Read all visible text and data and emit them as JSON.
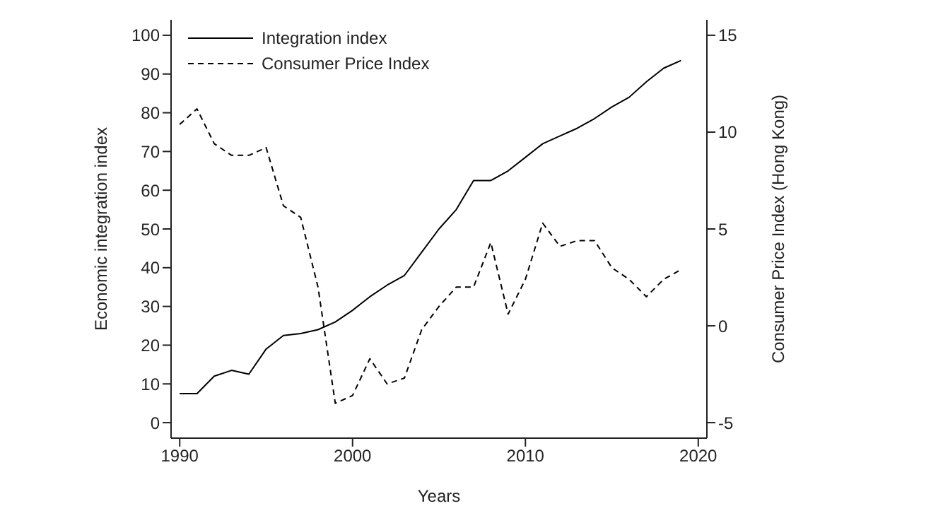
{
  "chart_data": {
    "type": "line",
    "xlabel": "Years",
    "ylabel": "Economic integration index",
    "y2label": "Consumer Price Index (Hong Kong)",
    "x": [
      1990,
      1991,
      1992,
      1993,
      1994,
      1995,
      1996,
      1997,
      1998,
      1999,
      2000,
      2001,
      2002,
      2003,
      2004,
      2005,
      2006,
      2007,
      2008,
      2009,
      2010,
      2011,
      2012,
      2013,
      2014,
      2015,
      2016,
      2017,
      2018,
      2019
    ],
    "series": [
      {
        "name": "Integration index",
        "color": "#000000",
        "line_style": "solid",
        "values": [
          7.5,
          7.5,
          12,
          13.5,
          12.5,
          19,
          22.5,
          23,
          24,
          26,
          29,
          32.5,
          35.5,
          38,
          44,
          50,
          55,
          62.5,
          62.5,
          65,
          68.5,
          72,
          74,
          76,
          78.5,
          81.5,
          84,
          88,
          91.5,
          93.5
        ]
      },
      {
        "name": "Consumer Price Index",
        "color": "#000000",
        "line_style": "dashed",
        "axis": "y2",
        "values": [
          10.4,
          11.2,
          9.4,
          8.8,
          8.8,
          9.2,
          6.2,
          5.6,
          2,
          -4,
          -3.6,
          -1.7,
          -3,
          -2.7,
          -0.2,
          1,
          2,
          2,
          4.3,
          0.6,
          2.4,
          5.3,
          4.1,
          4.4,
          4.4,
          3,
          2.4,
          1.5,
          2.4,
          2.9
        ]
      }
    ],
    "xlim": [
      1989.5,
      2020.5
    ],
    "xticks": [
      1990,
      2000,
      2010,
      2020
    ],
    "ylim": [
      -4,
      104
    ],
    "yticks": [
      0,
      10,
      20,
      30,
      40,
      50,
      60,
      70,
      80,
      90,
      100
    ],
    "y2lim": [
      -5.8,
      15.8
    ],
    "y2ticks": [
      -5,
      0,
      5,
      10,
      15
    ],
    "grid": false,
    "legend": "top left",
    "marker": "none"
  }
}
